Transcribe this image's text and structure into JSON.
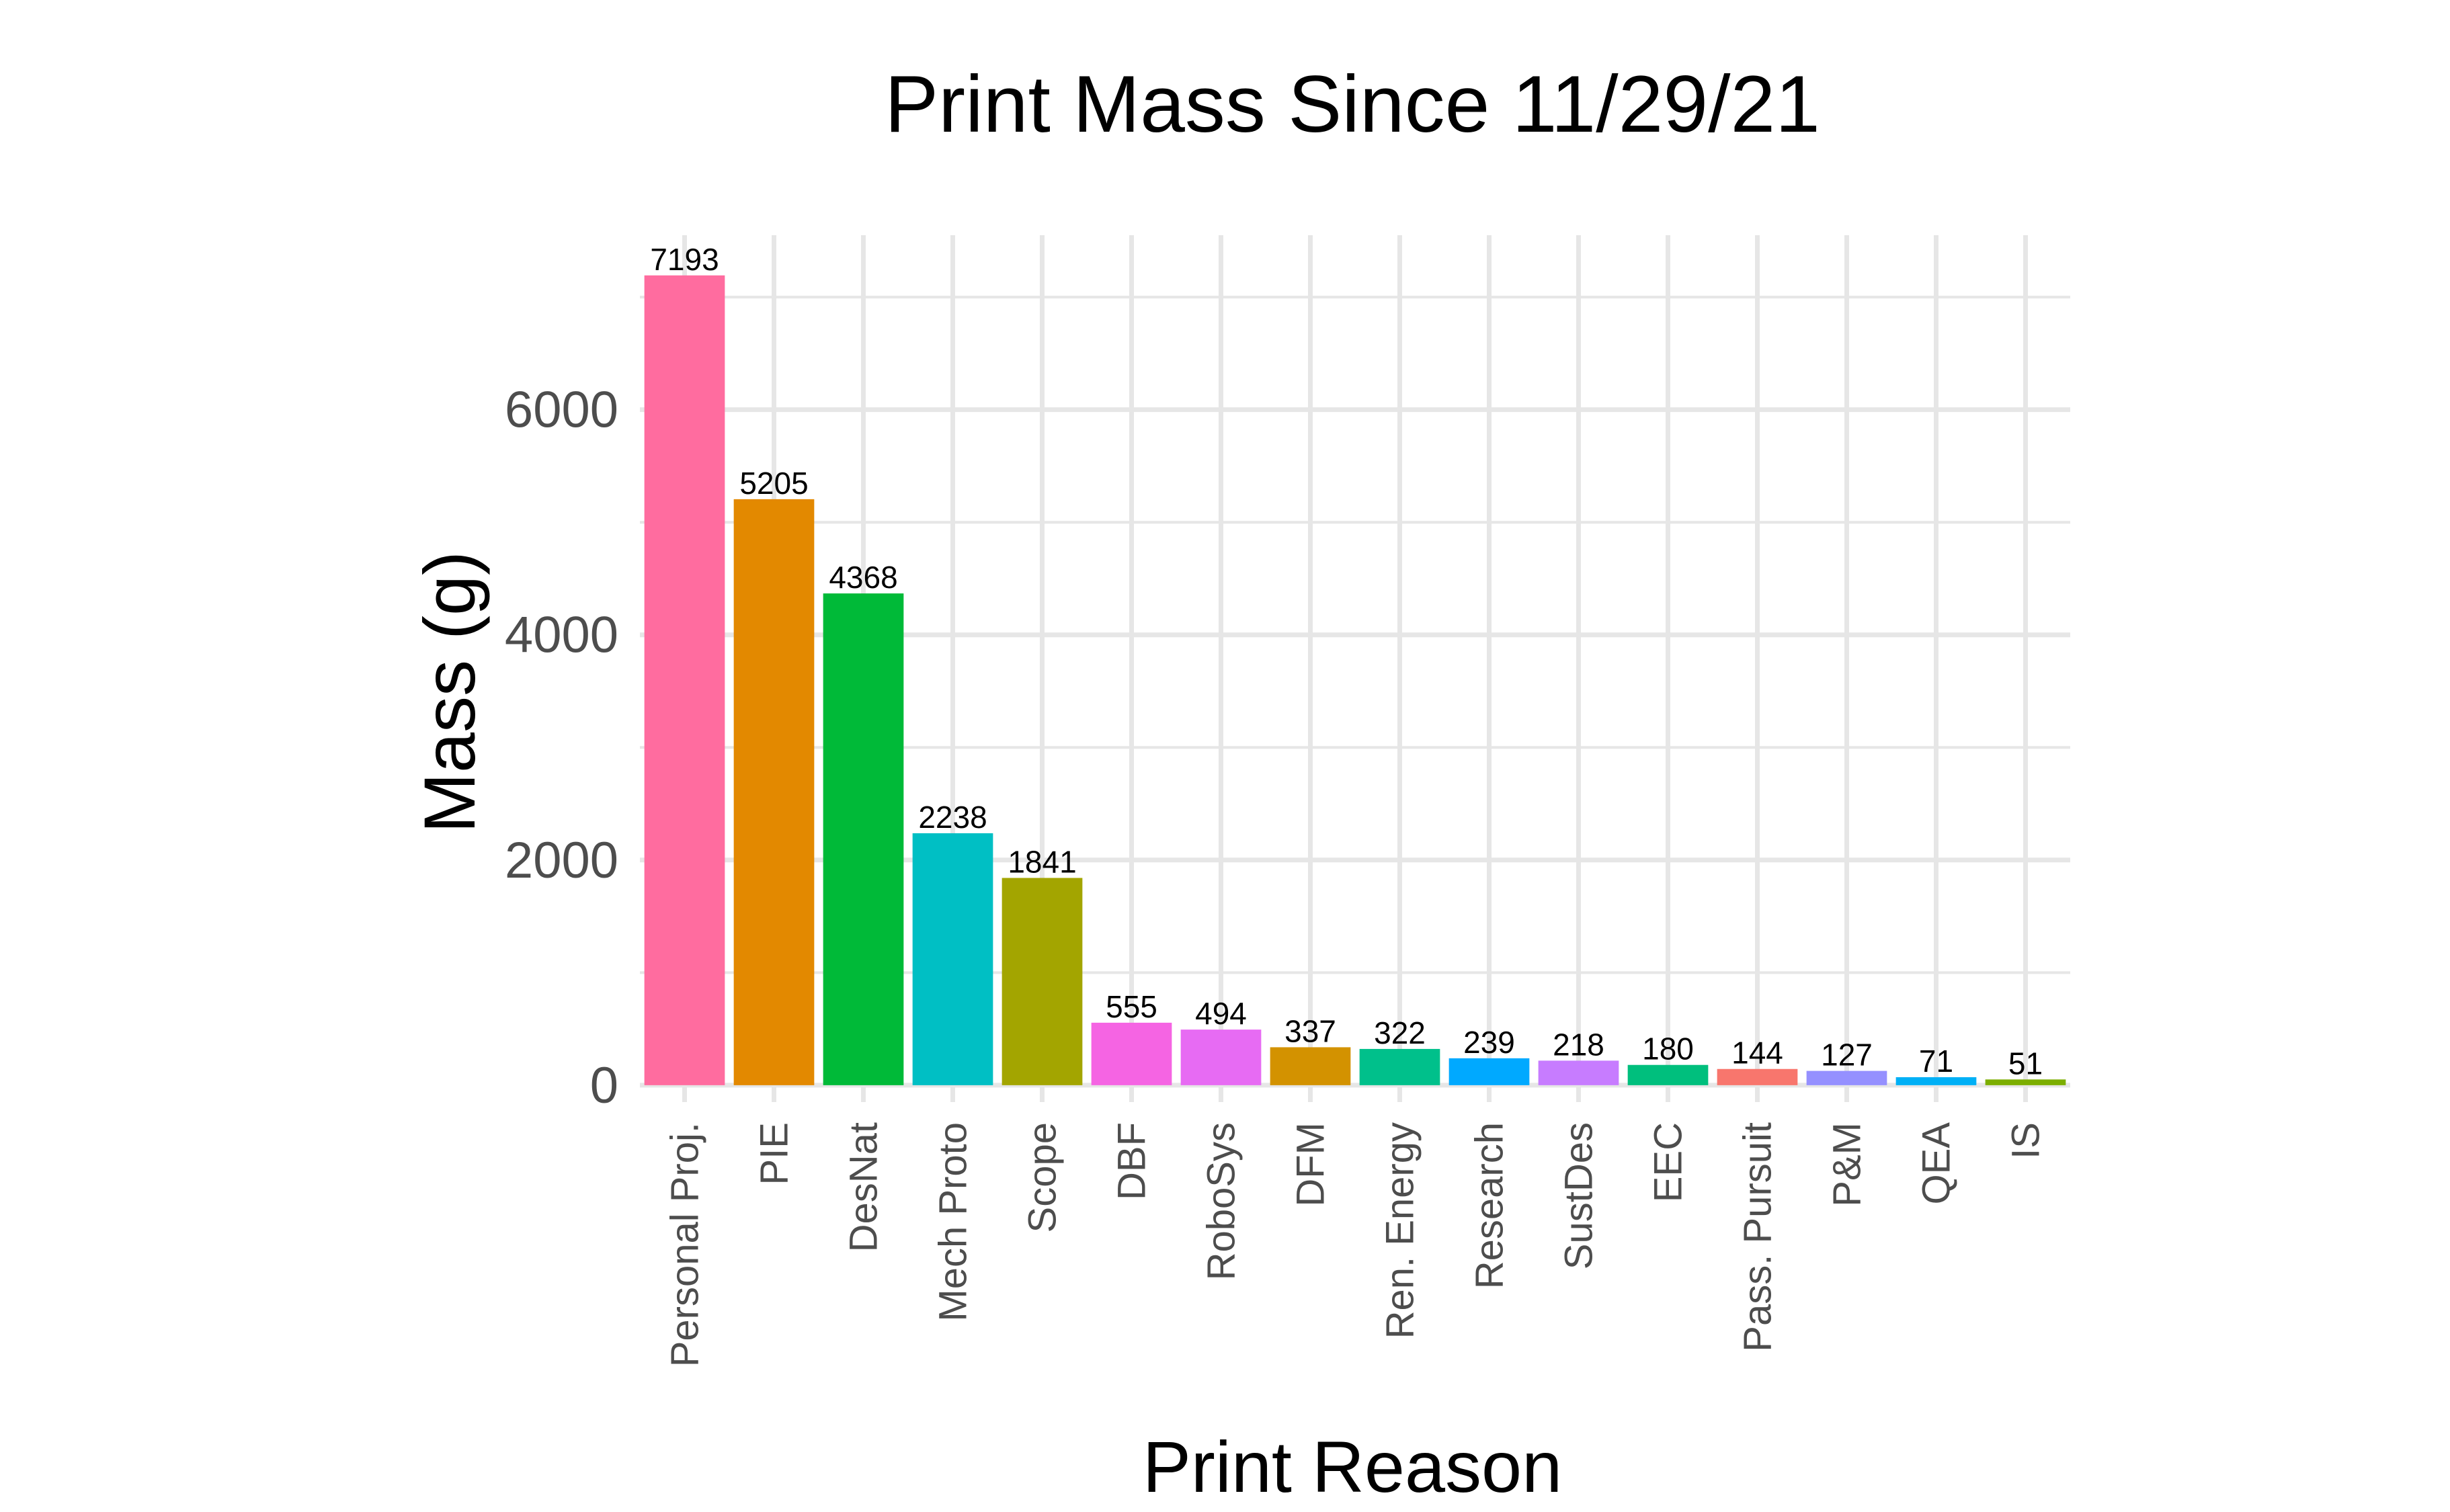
{
  "chart_data": {
    "type": "bar",
    "title": "Print Mass Since 11/29/21",
    "xlabel": "Print Reason",
    "ylabel": "Mass (g)",
    "categories": [
      "Personal Proj.",
      "PIE",
      "DesNat",
      "Mech Proto",
      "Scope",
      "DBF",
      "RoboSys",
      "DFM",
      "Ren. Energy",
      "Research",
      "SustDes",
      "EEC",
      "Pass. Pursuit",
      "P&M",
      "QEA",
      "IS"
    ],
    "values": [
      7193,
      5205,
      4368,
      2238,
      1841,
      555,
      494,
      337,
      322,
      239,
      218,
      180,
      144,
      127,
      71,
      51
    ],
    "data_labels": [
      "7193",
      "5205",
      "4368",
      "2238",
      "1841",
      "555",
      "494",
      "337",
      "322",
      "239",
      "218",
      "180",
      "144",
      "127",
      "71",
      "51"
    ],
    "colors": [
      "#FF6C9F",
      "#E38900",
      "#00BA38",
      "#00BFC4",
      "#A3A500",
      "#F564E3",
      "#E76BF3",
      "#D39200",
      "#00C08B",
      "#00A9FF",
      "#C77CFF",
      "#00BF7D",
      "#F8766D",
      "#9590FF",
      "#00B0F6",
      "#7CAE00"
    ],
    "yticks": [
      0,
      2000,
      4000,
      6000
    ],
    "ytick_labels": [
      "0",
      "2000",
      "4000",
      "6000"
    ],
    "ylim": [
      -150,
      7550
    ],
    "grid": true,
    "legend": "none"
  }
}
